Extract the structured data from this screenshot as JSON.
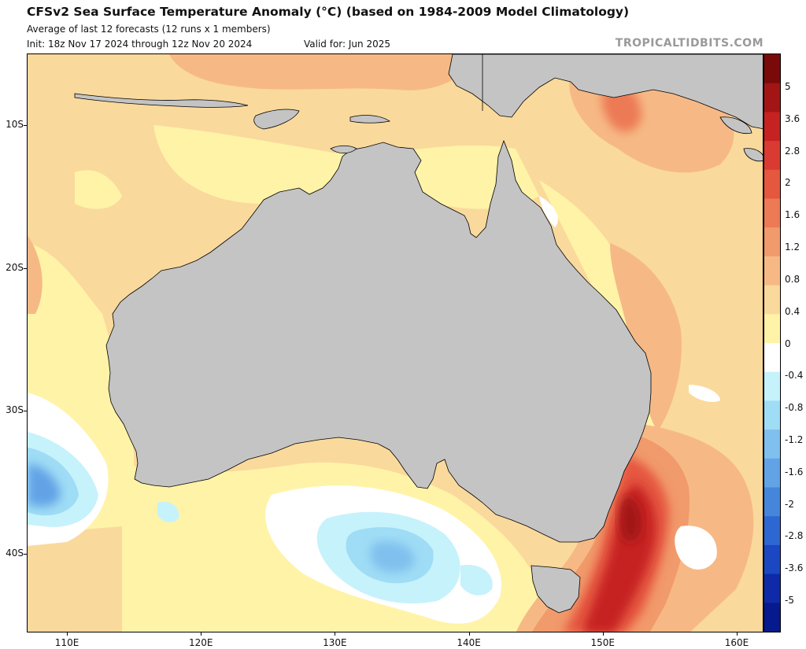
{
  "header": {
    "title": "CFSv2 Sea Surface Temperature Anomaly (°C) (based on 1984-2009 Model Climatology)",
    "subtitle": "Average of last 12 forecasts (12 runs x 1 members)",
    "init": "Init: 18z Nov 17 2024 through 12z Nov 20 2024",
    "valid": "Valid for: Jun 2025",
    "brand": "TROPICALTIDBITS.COM"
  },
  "map": {
    "lon_range": [
      107,
      162
    ],
    "lat_range": [
      -45.5,
      -5
    ],
    "lat_ticks": [
      {
        "label": "10S",
        "lat": -10
      },
      {
        "label": "20S",
        "lat": -20
      },
      {
        "label": "30S",
        "lat": -30
      },
      {
        "label": "40S",
        "lat": -40
      }
    ],
    "lon_ticks": [
      {
        "label": "110E",
        "lon": 110
      },
      {
        "label": "120E",
        "lon": 120
      },
      {
        "label": "130E",
        "lon": 130
      },
      {
        "label": "140E",
        "lon": 140
      },
      {
        "label": "150E",
        "lon": 150
      },
      {
        "label": "160E",
        "lon": 160
      }
    ]
  },
  "colorbar": {
    "labels": [
      "5",
      "3.6",
      "2.8",
      "2",
      "1.6",
      "1.2",
      "0.8",
      "0.4",
      "0",
      "-0.4",
      "-0.8",
      "-1.2",
      "-1.6",
      "-2",
      "-2.8",
      "-3.6",
      "-5"
    ],
    "colors": [
      "#7a0a0a",
      "#a31515",
      "#c62222",
      "#d93a32",
      "#e5573f",
      "#ec7a55",
      "#f19a6b",
      "#f6b985",
      "#fad99c",
      "#fff3a8",
      "#ffffff",
      "#c6f2fb",
      "#9fdcf5",
      "#7fc0ee",
      "#62a3e6",
      "#4586dc",
      "#2e67d1",
      "#1b47c2",
      "#0e2aa8",
      "#061a8e"
    ]
  },
  "colors": {
    "land": "#c4c4c4",
    "ocean_base": "#fad99c"
  }
}
